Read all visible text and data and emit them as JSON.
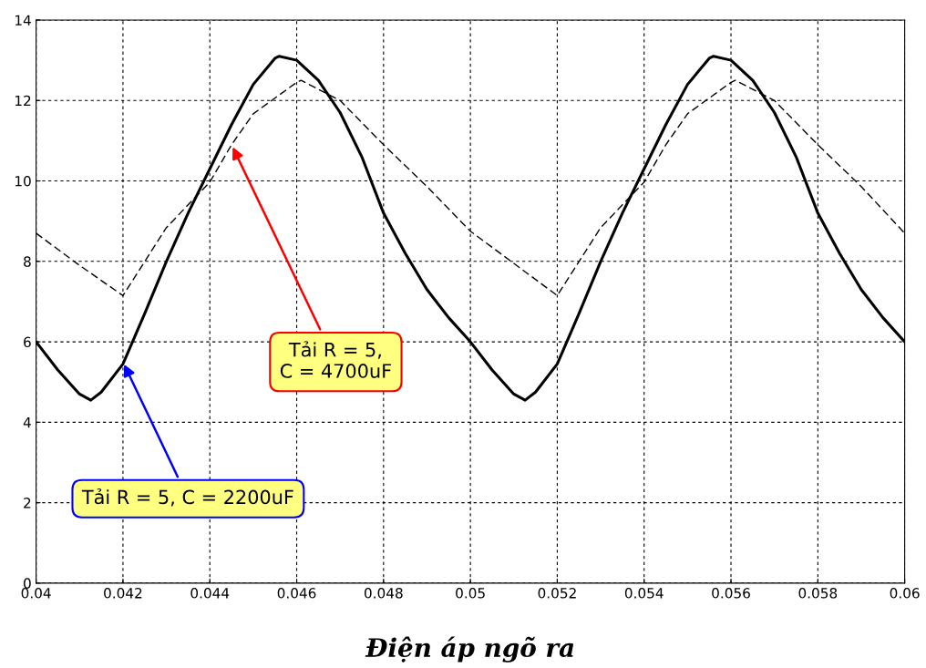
{
  "chart_data": {
    "type": "line",
    "xlabel": "Điện áp ngõ ra",
    "xlim": [
      0.04,
      0.06
    ],
    "xticks": [
      0.04,
      0.042,
      0.044,
      0.046,
      0.048,
      0.05,
      0.052,
      0.054,
      0.056,
      0.058,
      0.06
    ],
    "ylim": [
      0,
      14
    ],
    "yticks": [
      0,
      2,
      4,
      6,
      8,
      10,
      12,
      14
    ],
    "grid": true,
    "marker": "none",
    "series": [
      {
        "color": "#000000",
        "line_style": "solid",
        "x": [
          0.04,
          0.0405,
          0.041,
          0.04126,
          0.0415,
          0.042,
          0.0425,
          0.043,
          0.0435,
          0.044,
          0.0445,
          0.045,
          0.0455,
          0.0456,
          0.046,
          0.0465,
          0.047,
          0.0475,
          0.048,
          0.0485,
          0.049,
          0.0495,
          0.05,
          0.0505,
          0.051,
          0.05126,
          0.0515,
          0.052,
          0.0525,
          0.053,
          0.0535,
          0.054,
          0.0545,
          0.055,
          0.0555,
          0.0556,
          0.056,
          0.0565,
          0.057,
          0.0575,
          0.058,
          0.0585,
          0.059,
          0.0595,
          0.06
        ],
        "values": [
          6.0,
          5.3,
          4.7,
          4.55,
          4.75,
          5.45,
          6.7,
          8.0,
          9.2,
          10.3,
          11.4,
          12.4,
          13.05,
          13.1,
          13.0,
          12.5,
          11.7,
          10.6,
          9.2,
          8.2,
          7.3,
          6.6,
          6.0,
          5.3,
          4.7,
          4.55,
          4.75,
          5.45,
          6.7,
          8.0,
          9.2,
          10.3,
          11.4,
          12.4,
          13.05,
          13.1,
          13.0,
          12.5,
          11.7,
          10.6,
          9.2,
          8.2,
          7.3,
          6.6,
          6.0
        ]
      },
      {
        "color": "#000000",
        "line_style": "dashed",
        "x": [
          0.04,
          0.041,
          0.042,
          0.043,
          0.044,
          0.0445,
          0.045,
          0.046,
          0.0461,
          0.047,
          0.048,
          0.049,
          0.05,
          0.051,
          0.052,
          0.053,
          0.054,
          0.0545,
          0.055,
          0.056,
          0.0561,
          0.057,
          0.058,
          0.059,
          0.06
        ],
        "values": [
          8.7,
          7.9,
          7.15,
          8.84,
          9.97,
          10.9,
          11.67,
          12.45,
          12.5,
          12.0,
          10.9,
          9.86,
          8.75,
          7.95,
          7.15,
          8.84,
          9.97,
          10.9,
          11.67,
          12.45,
          12.5,
          12.0,
          10.9,
          9.86,
          8.7
        ]
      }
    ],
    "annotations": [
      {
        "text": "Tải R = 5, C = 2200uF",
        "x": 0.042,
        "y": 5.5
      },
      {
        "text": "Tải R = 5,\nC = 4700uF",
        "x": 0.0445,
        "y": 10.9
      }
    ]
  }
}
